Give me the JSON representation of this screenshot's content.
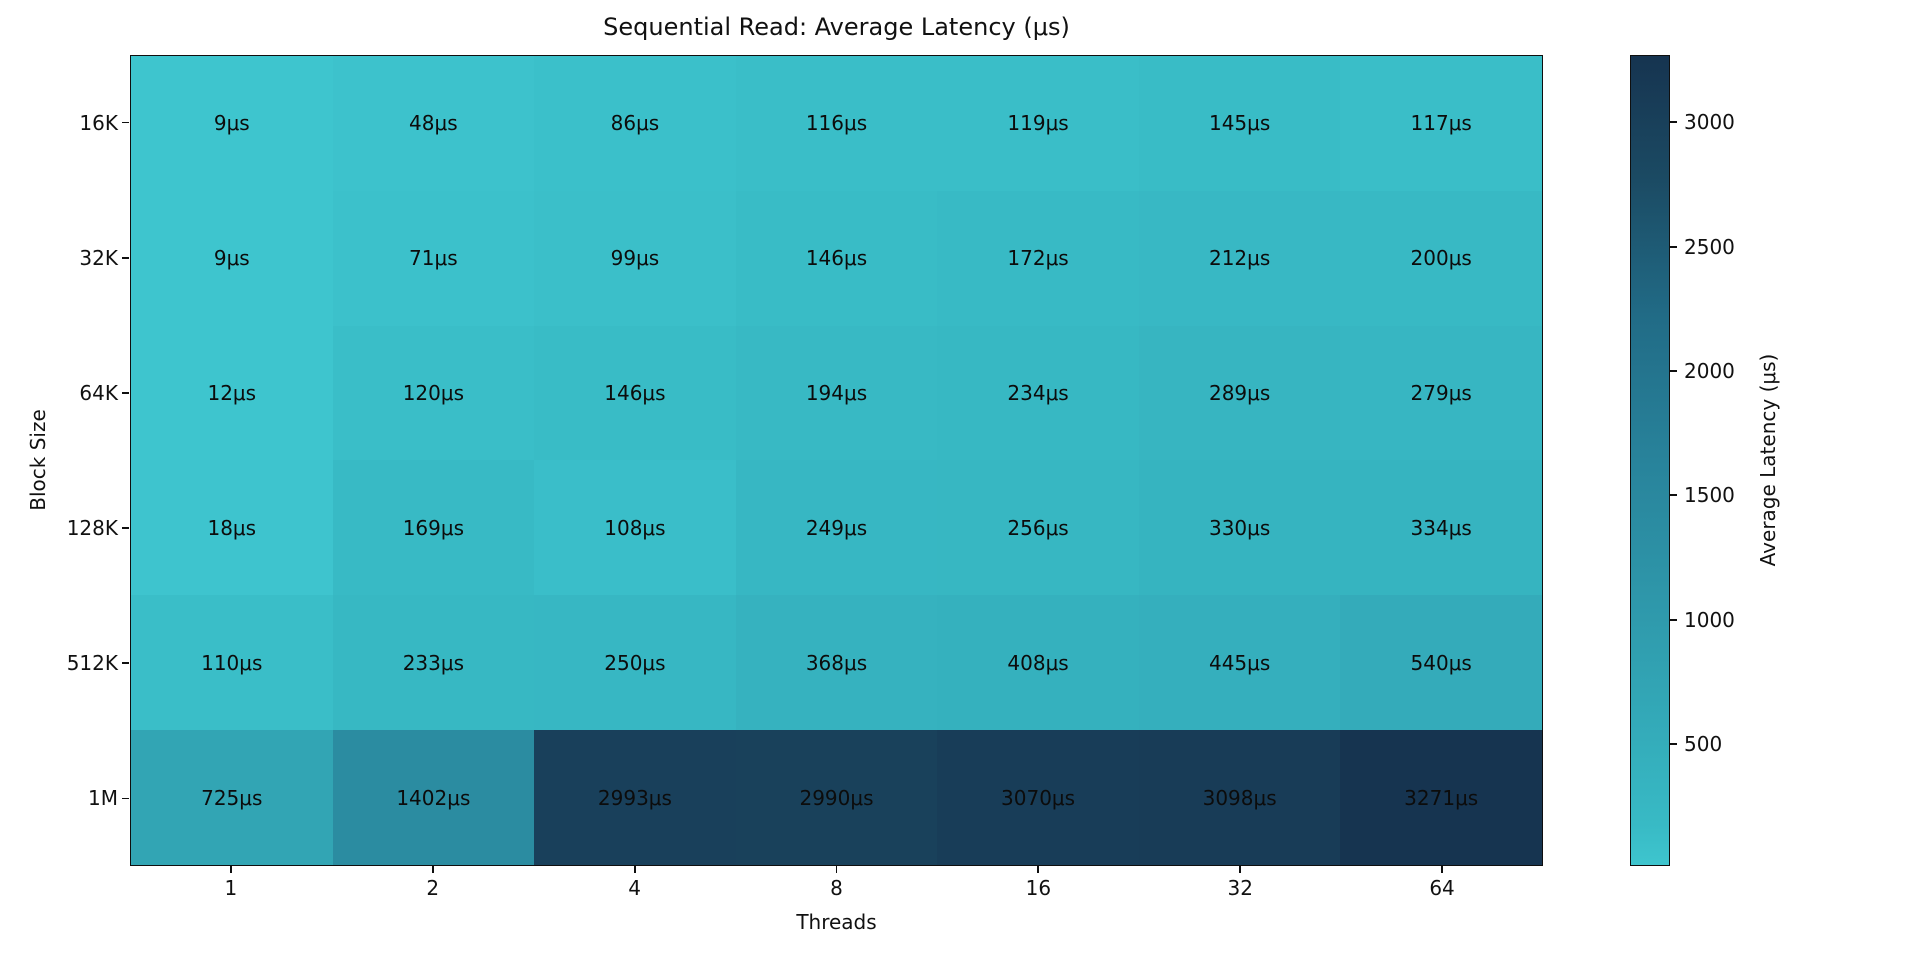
{
  "chart_data": {
    "type": "heatmap",
    "title": "Sequential Read: Average Latency (μs)",
    "xlabel": "Threads",
    "ylabel": "Block Size",
    "x_categories": [
      "1",
      "2",
      "4",
      "8",
      "16",
      "32",
      "64"
    ],
    "y_categories": [
      "16K",
      "32K",
      "64K",
      "128K",
      "512K",
      "1M"
    ],
    "values": [
      [
        9,
        48,
        86,
        116,
        119,
        145,
        117
      ],
      [
        9,
        71,
        99,
        146,
        172,
        212,
        200
      ],
      [
        12,
        120,
        146,
        194,
        234,
        289,
        279
      ],
      [
        18,
        169,
        108,
        249,
        256,
        330,
        334
      ],
      [
        110,
        233,
        250,
        368,
        408,
        445,
        540
      ],
      [
        725,
        1402,
        2993,
        2990,
        3070,
        3098,
        3271
      ]
    ],
    "unit": "μs",
    "vmin": 9,
    "vmax": 3271,
    "grid": false,
    "legend_position": "right-colorbar",
    "colorbar": {
      "label": "Average Latency (μs)",
      "ticks": [
        500,
        1000,
        1500,
        2000,
        2500,
        3000
      ]
    },
    "colormap_stops": [
      [
        0.0,
        "#3ec5ce"
      ],
      [
        0.05,
        "#38bac5"
      ],
      [
        0.15,
        "#34adbb"
      ],
      [
        0.33,
        "#2e97aa"
      ],
      [
        0.5,
        "#28839b"
      ],
      [
        0.68,
        "#216b86"
      ],
      [
        0.85,
        "#1b4a63"
      ],
      [
        1.0,
        "#163450"
      ]
    ],
    "text_color": "#0c0c0c"
  }
}
